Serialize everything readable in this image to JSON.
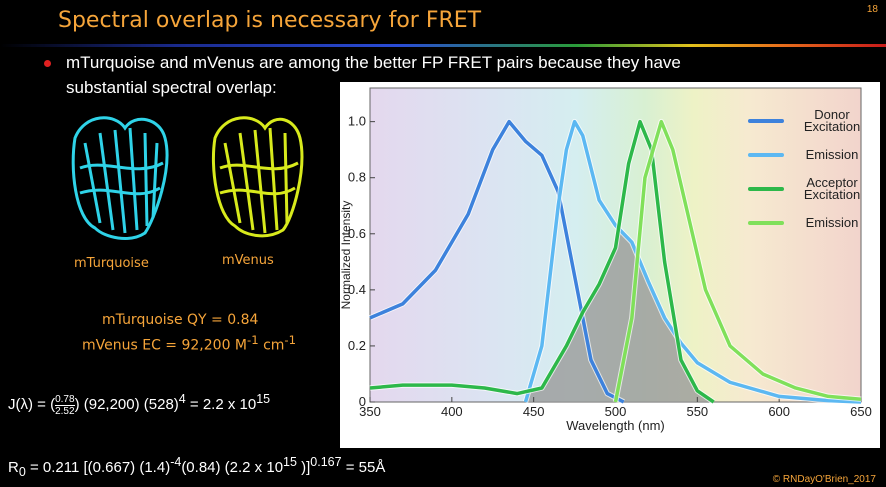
{
  "slide_number": "18",
  "title": "Spectral overlap is necessary for FRET",
  "bullet_lines": [
    "mTurquoise and mVenus are among the better FP FRET pairs because they have",
    "substantial spectral overlap:"
  ],
  "proteins": [
    {
      "label": "mTurquoise"
    },
    {
      "label": "mVenus"
    }
  ],
  "qy": "mTurquoise QY = 0.84",
  "ec": [
    {
      "text": "mVenus EC = 92,200 M"
    },
    {
      "sup": "-1"
    },
    {
      "text": " cm"
    },
    {
      "sup": "-1"
    }
  ],
  "j_equation": [
    {
      "text": "J(λ) = ("
    },
    {
      "num": "0.78",
      "den": "2.52"
    },
    {
      "text": ") (92,200) (528)"
    },
    {
      "sup": "4"
    },
    {
      "text": " =  2.2 x 10"
    },
    {
      "sup": "15"
    }
  ],
  "r_equation": [
    {
      "text": "R"
    },
    {
      "sub": "0"
    },
    {
      "text": " = 0.211 [(0.667) (1.4)"
    },
    {
      "sup": "-4"
    },
    {
      "text": "(0.84) (2.2 x 10"
    },
    {
      "sup": "15"
    },
    {
      "text": " )]"
    },
    {
      "sup": "0.167"
    },
    {
      "text": " = 55Å"
    }
  ],
  "copyright": "© RNDayO'Brien_2017",
  "chart_data": {
    "type": "line",
    "x_label": "Wavelength (nm)",
    "y_label": "Normalized Intensity",
    "xlim": [
      350,
      650
    ],
    "ylim": [
      0,
      1.12
    ],
    "xticks": [
      350,
      400,
      450,
      500,
      550,
      600,
      650
    ],
    "yticks": [
      0,
      0.2,
      0.4,
      0.6,
      0.8,
      {
        "value": 1,
        "label": "1.0"
      }
    ],
    "legend": "upper right",
    "series": [
      {
        "name": "Donor Excitation",
        "color": "#3d82dc",
        "x": [
          350,
          370,
          390,
          410,
          425,
          435,
          445,
          455,
          465,
          475,
          485,
          495,
          505
        ],
        "values": [
          0.3,
          0.35,
          0.47,
          0.67,
          0.9,
          1.0,
          0.93,
          0.88,
          0.75,
          0.45,
          0.15,
          0.03,
          0
        ]
      },
      {
        "name": "Emission",
        "color": "#5cb8f2",
        "x": [
          445,
          455,
          465,
          470,
          475,
          480,
          490,
          500,
          510,
          520,
          530,
          540,
          550,
          570,
          600,
          630,
          650
        ],
        "values": [
          0,
          0.2,
          0.7,
          0.9,
          1.0,
          0.95,
          0.72,
          0.63,
          0.57,
          0.43,
          0.3,
          0.21,
          0.14,
          0.07,
          0.02,
          0.005,
          0
        ]
      },
      {
        "name": "Acceptor Excitation",
        "color": "#2db84a",
        "x": [
          350,
          370,
          400,
          420,
          440,
          455,
          470,
          480,
          490,
          500,
          508,
          515,
          522,
          530,
          540,
          550,
          560
        ],
        "values": [
          0.05,
          0.06,
          0.06,
          0.05,
          0.03,
          0.05,
          0.2,
          0.32,
          0.42,
          0.55,
          0.85,
          1.0,
          0.9,
          0.5,
          0.15,
          0.04,
          0
        ]
      },
      {
        "name": "Emission",
        "color": "#80e05a",
        "x": [
          500,
          510,
          518,
          528,
          535,
          545,
          555,
          570,
          590,
          610,
          630,
          650
        ],
        "values": [
          0,
          0.3,
          0.8,
          1.0,
          0.9,
          0.65,
          0.4,
          0.2,
          0.1,
          0.05,
          0.02,
          0.01
        ]
      }
    ]
  }
}
